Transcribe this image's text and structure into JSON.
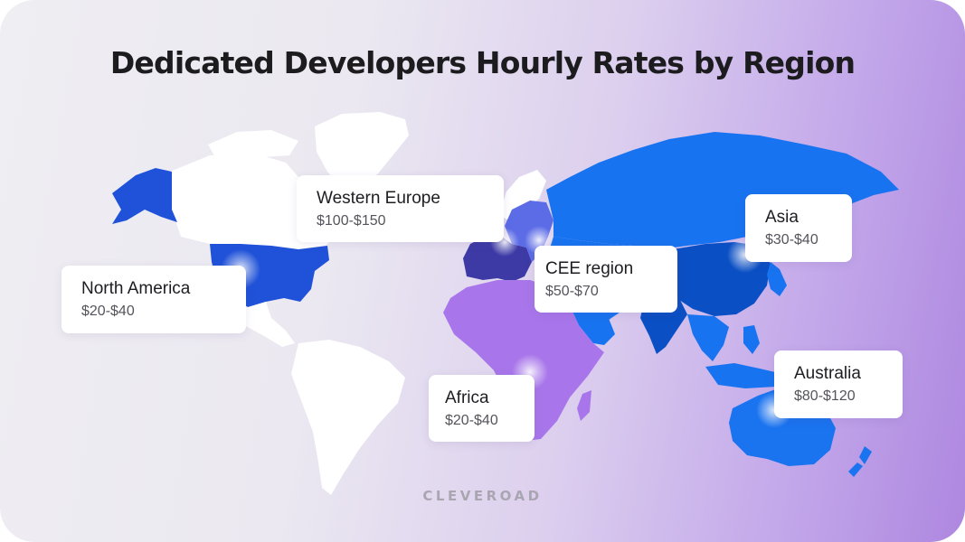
{
  "title": "Dedicated Developers Hourly Rates by Region",
  "brand": "CLEVEROAD",
  "colors": {
    "north_america": "#1f52d8",
    "western_europe": "#3d3aa6",
    "cee": "#5c6ce6",
    "asia": "#1873f0",
    "asia_dark": "#0b4fc4",
    "africa": "#a876ea",
    "australia": "#1a73ef",
    "land_neutral": "#ffffff"
  },
  "regions": [
    {
      "id": "north-america",
      "name": "North America",
      "rate": "$20-$40"
    },
    {
      "id": "western-europe",
      "name": "Western Europe",
      "rate": "$100-$150"
    },
    {
      "id": "cee",
      "name": "CEE region",
      "rate": "$50-$70"
    },
    {
      "id": "asia",
      "name": "Asia",
      "rate": "$30-$40"
    },
    {
      "id": "africa",
      "name": "Africa",
      "rate": "$20-$40"
    },
    {
      "id": "australia",
      "name": "Australia",
      "rate": "$80-$120"
    }
  ]
}
